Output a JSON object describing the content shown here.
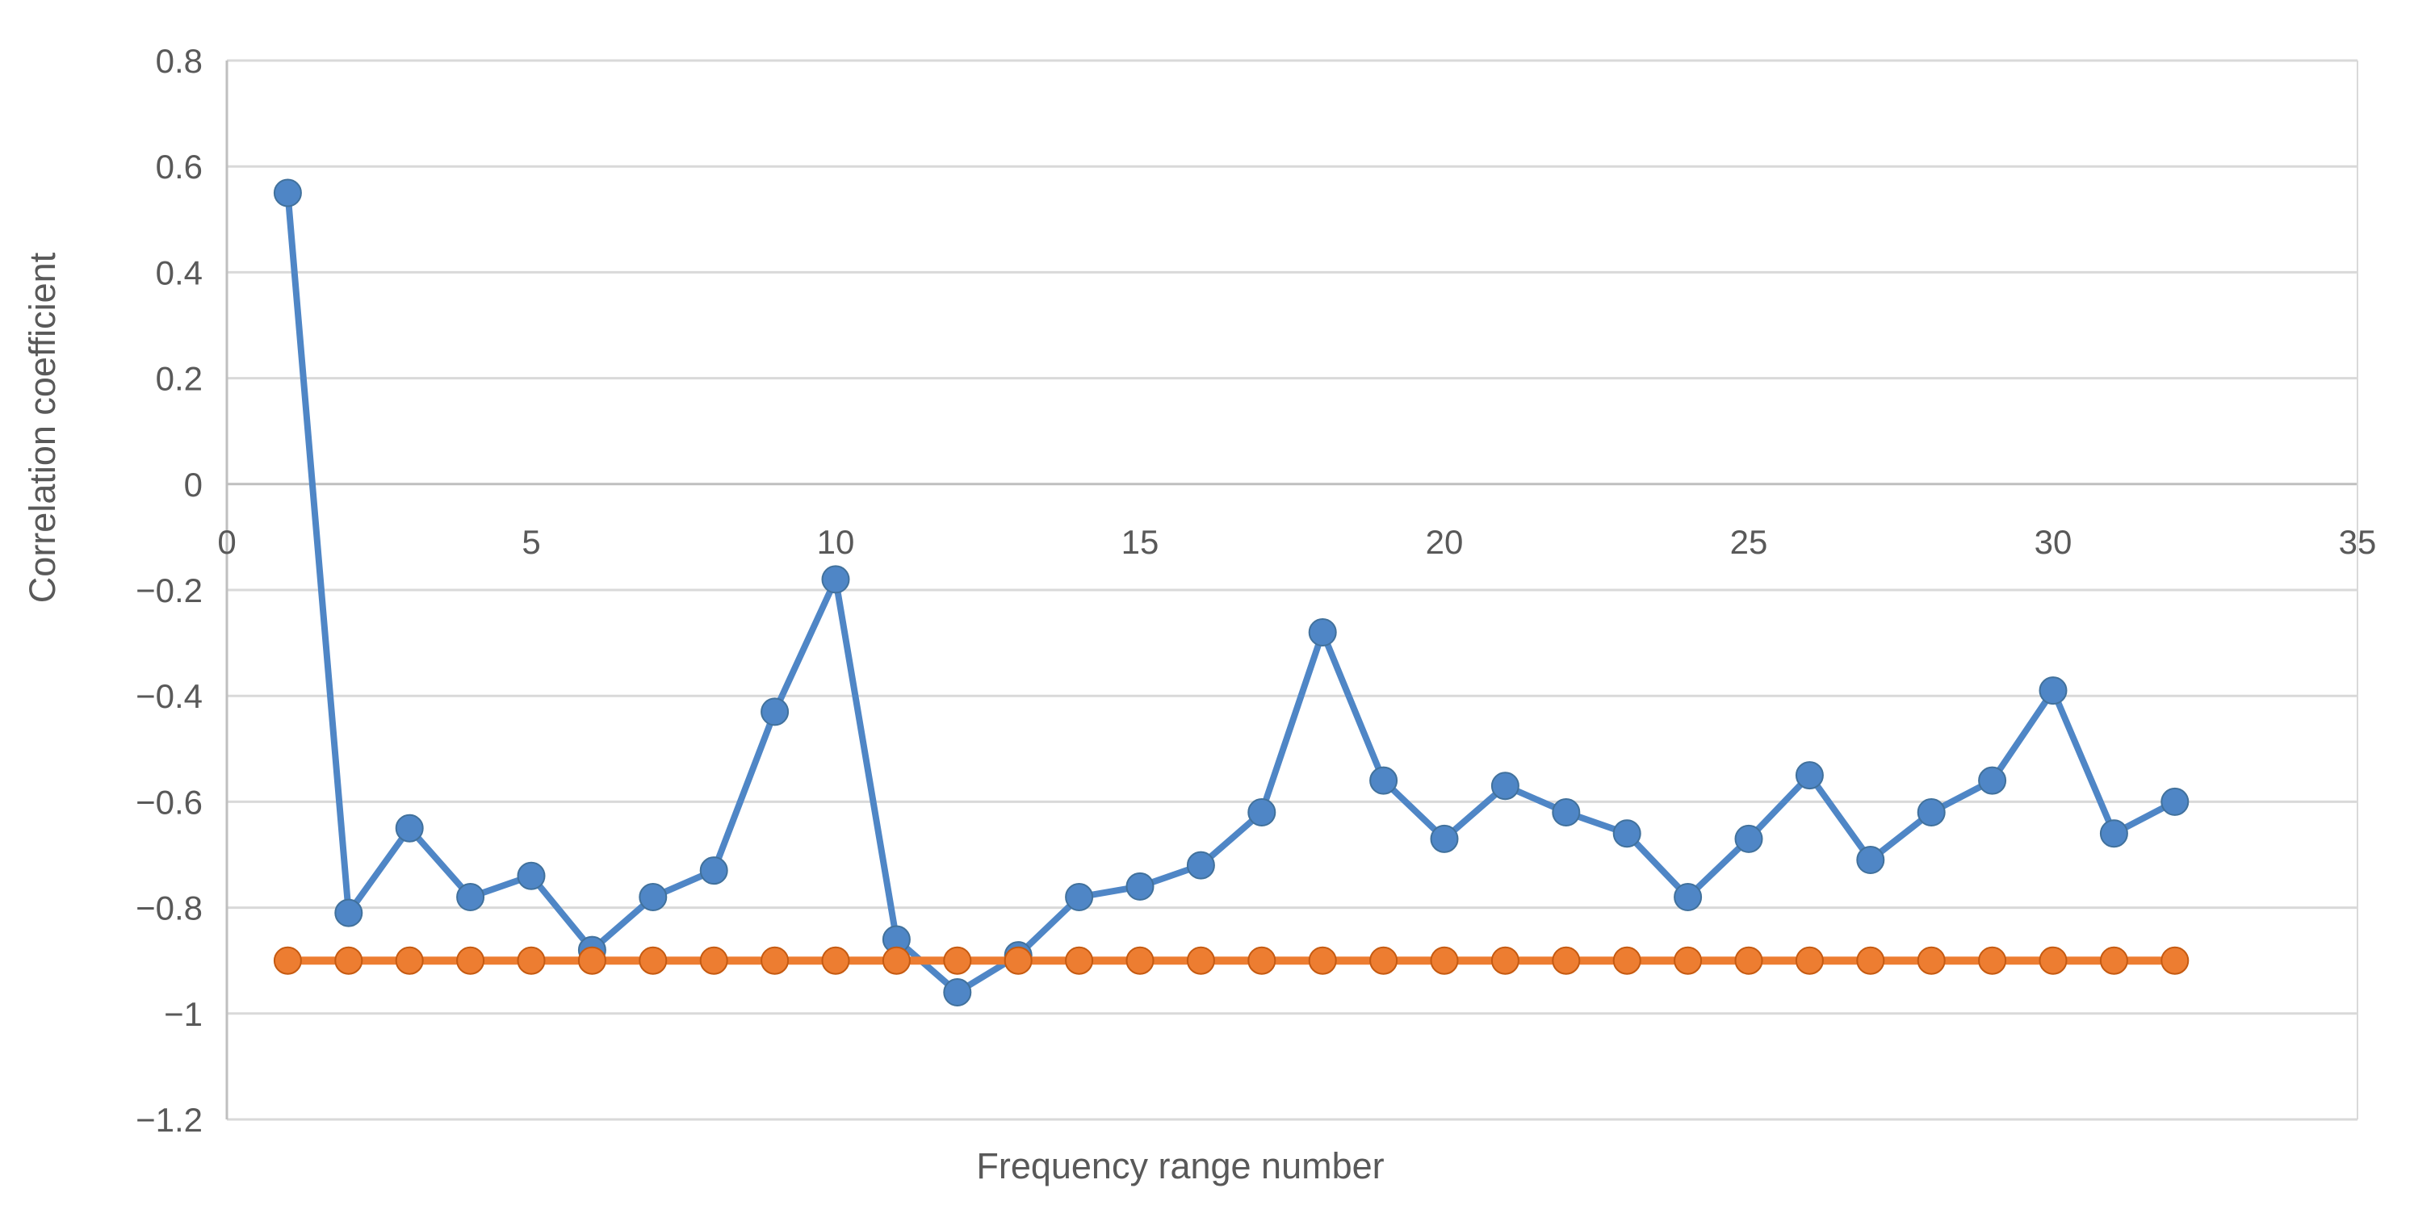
{
  "chart_data": {
    "type": "line",
    "title": "",
    "xlabel": "Frequency range number",
    "ylabel": "Correlation coefficient",
    "xlim": [
      0,
      35
    ],
    "ylim": [
      -1.2,
      0.8
    ],
    "grid": true,
    "legend": "none",
    "x_ticks": {
      "values": [
        0,
        5,
        10,
        15,
        20,
        25,
        30,
        35
      ],
      "labels": [
        "0",
        "5",
        "10",
        "15",
        "20",
        "25",
        "30",
        "35"
      ]
    },
    "y_ticks": {
      "values": [
        0.8,
        0.6,
        0.4,
        0.2,
        0,
        -0.2,
        -0.4,
        -0.6,
        -0.8,
        -1,
        -1.2
      ],
      "labels": [
        "0.8",
        "0.6",
        "0.4",
        "0.2",
        "0",
        "−0.2",
        "−0.4",
        "−0.6",
        "−0.8",
        "−1",
        "−1.2"
      ]
    },
    "x": [
      1,
      2,
      3,
      4,
      5,
      6,
      7,
      8,
      9,
      10,
      11,
      12,
      13,
      14,
      15,
      16,
      17,
      18,
      19,
      20,
      21,
      22,
      23,
      24,
      25,
      26,
      27,
      28,
      29,
      30,
      31,
      32
    ],
    "series": [
      {
        "name": "blue-correlation-series",
        "color": "#4F86C6",
        "marker_edge": "#41719C",
        "values": [
          0.55,
          -0.81,
          -0.65,
          -0.78,
          -0.74,
          -0.88,
          -0.78,
          -0.73,
          -0.43,
          -0.18,
          -0.86,
          -0.96,
          -0.89,
          -0.78,
          -0.76,
          -0.72,
          -0.62,
          -0.28,
          -0.56,
          -0.67,
          -0.57,
          -0.62,
          -0.66,
          -0.78,
          -0.67,
          -0.55,
          -0.71,
          -0.62,
          -0.56,
          -0.39,
          -0.66,
          -0.6
        ]
      },
      {
        "name": "orange-reference-series",
        "color": "#ED7D31",
        "marker_edge": "#C55A11",
        "values": [
          -0.9,
          -0.9,
          -0.9,
          -0.9,
          -0.9,
          -0.9,
          -0.9,
          -0.9,
          -0.9,
          -0.9,
          -0.9,
          -0.9,
          -0.9,
          -0.9,
          -0.9,
          -0.9,
          -0.9,
          -0.9,
          -0.9,
          -0.9,
          -0.9,
          -0.9,
          -0.9,
          -0.9,
          -0.9,
          -0.9,
          -0.9,
          -0.9,
          -0.9,
          -0.9,
          -0.9,
          -0.9
        ]
      }
    ]
  },
  "style": {
    "gridline_color": "#D9D9D9",
    "axis_line_color": "#BFBFBF",
    "tick_text_color": "#595959",
    "background": "#FFFFFF"
  }
}
